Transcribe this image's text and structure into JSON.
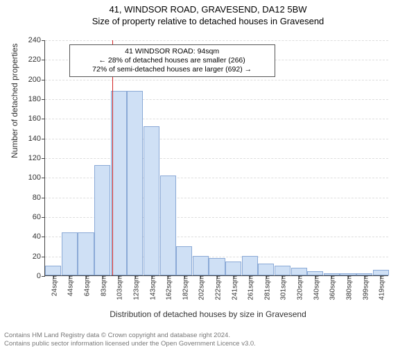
{
  "titles": {
    "line1": "41, WINDSOR ROAD, GRAVESEND, DA12 5BW",
    "line2": "Size of property relative to detached houses in Gravesend"
  },
  "chart": {
    "type": "histogram",
    "ylabel": "Number of detached properties",
    "xlabel": "Distribution of detached houses by size in Gravesend",
    "ylim": [
      0,
      240
    ],
    "ytick_step": 20,
    "bar_fill": "#cfe0f5",
    "bar_border": "#8aa9d6",
    "grid_color": "#dddddd",
    "axis_color": "#444444",
    "background": "#ffffff",
    "label_fontsize": 12,
    "tick_fontsize": 11,
    "xtick_fontsize": 10,
    "xtick_rotation": -90,
    "categories": [
      "24sqm",
      "44sqm",
      "64sqm",
      "83sqm",
      "103sqm",
      "123sqm",
      "143sqm",
      "162sqm",
      "182sqm",
      "202sqm",
      "222sqm",
      "241sqm",
      "261sqm",
      "281sqm",
      "301sqm",
      "320sqm",
      "340sqm",
      "360sqm",
      "380sqm",
      "399sqm",
      "419sqm"
    ],
    "values": [
      10,
      44,
      44,
      112,
      188,
      188,
      152,
      102,
      30,
      20,
      18,
      14,
      20,
      12,
      10,
      8,
      4,
      2,
      2,
      2,
      6
    ],
    "marker": {
      "position_index": 3.6,
      "color": "#d22222"
    },
    "annotation": {
      "line1": "41 WINDSOR ROAD: 94sqm",
      "line2": "← 28% of detached houses are smaller (266)",
      "line3": "72% of semi-detached houses are larger (692) →",
      "border": "#555555",
      "background": "#ffffff",
      "fontsize": 10.5,
      "left_pct": 7,
      "width_pct": 60
    }
  },
  "footer": {
    "line1": "Contains HM Land Registry data © Crown copyright and database right 2024.",
    "line2": "Contains public sector information licensed under the Open Government Licence v3.0.",
    "color": "#777777",
    "fontsize": 9.5
  }
}
